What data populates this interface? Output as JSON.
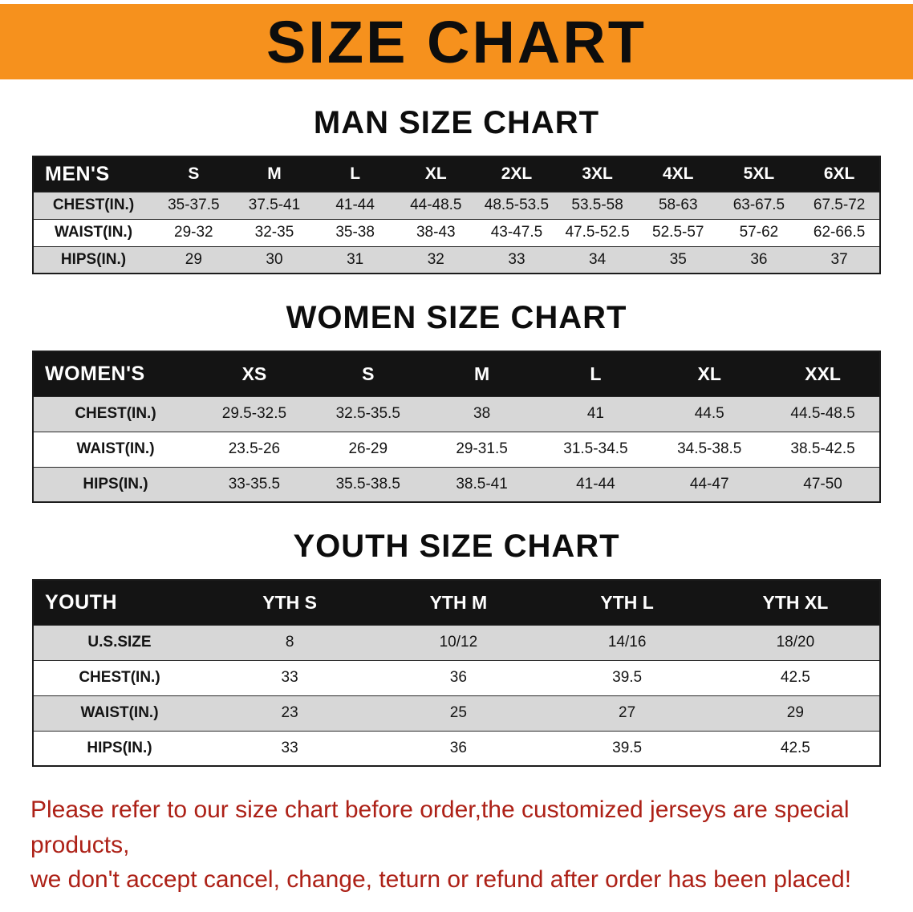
{
  "banner": {
    "title": "SIZE CHART"
  },
  "colors": {
    "banner_orange": "#f6911d",
    "header_black": "#141414",
    "row_gray": "#d7d7d7",
    "footer_red": "#ad2117"
  },
  "sections": [
    {
      "heading": "MAN SIZE CHART",
      "table": {
        "corner": "MEN'S",
        "columns": [
          "S",
          "M",
          "L",
          "XL",
          "2XL",
          "3XL",
          "4XL",
          "5XL",
          "6XL"
        ],
        "rows": [
          {
            "label": "CHEST(IN.)",
            "values": [
              "35-37.5",
              "37.5-41",
              "41-44",
              "44-48.5",
              "48.5-53.5",
              "53.5-58",
              "58-63",
              "63-67.5",
              "67.5-72"
            ]
          },
          {
            "label": "WAIST(IN.)",
            "values": [
              "29-32",
              "32-35",
              "35-38",
              "38-43",
              "43-47.5",
              "47.5-52.5",
              "52.5-57",
              "57-62",
              "62-66.5"
            ]
          },
          {
            "label": "HIPS(IN.)",
            "values": [
              "29",
              "30",
              "31",
              "32",
              "33",
              "34",
              "35",
              "36",
              "37"
            ]
          }
        ]
      }
    },
    {
      "heading": "WOMEN SIZE CHART",
      "table": {
        "corner": "WOMEN'S",
        "columns": [
          "XS",
          "S",
          "M",
          "L",
          "XL",
          "XXL"
        ],
        "rows": [
          {
            "label": "CHEST(IN.)",
            "values": [
              "29.5-32.5",
              "32.5-35.5",
              "38",
              "41",
              "44.5",
              "44.5-48.5"
            ]
          },
          {
            "label": "WAIST(IN.)",
            "values": [
              "23.5-26",
              "26-29",
              "29-31.5",
              "31.5-34.5",
              "34.5-38.5",
              "38.5-42.5"
            ]
          },
          {
            "label": "HIPS(IN.)",
            "values": [
              "33-35.5",
              "35.5-38.5",
              "38.5-41",
              "41-44",
              "44-47",
              "47-50"
            ]
          }
        ]
      }
    },
    {
      "heading": "YOUTH SIZE CHART",
      "table": {
        "corner": "YOUTH",
        "columns": [
          "YTH S",
          "YTH M",
          "YTH L",
          "YTH XL"
        ],
        "rows": [
          {
            "label": "U.S.SIZE",
            "values": [
              "8",
              "10/12",
              "14/16",
              "18/20"
            ]
          },
          {
            "label": "CHEST(IN.)",
            "values": [
              "33",
              "36",
              "39.5",
              "42.5"
            ]
          },
          {
            "label": "WAIST(IN.)",
            "values": [
              "23",
              "25",
              "27",
              "29"
            ]
          },
          {
            "label": "HIPS(IN.)",
            "values": [
              "33",
              "36",
              "39.5",
              "42.5"
            ]
          }
        ]
      }
    }
  ],
  "footer": {
    "lines": [
      "Please refer to our size chart before order,the customized jerseys are special products,",
      "we don't accept cancel, change, teturn or refund after order has been placed!"
    ]
  }
}
